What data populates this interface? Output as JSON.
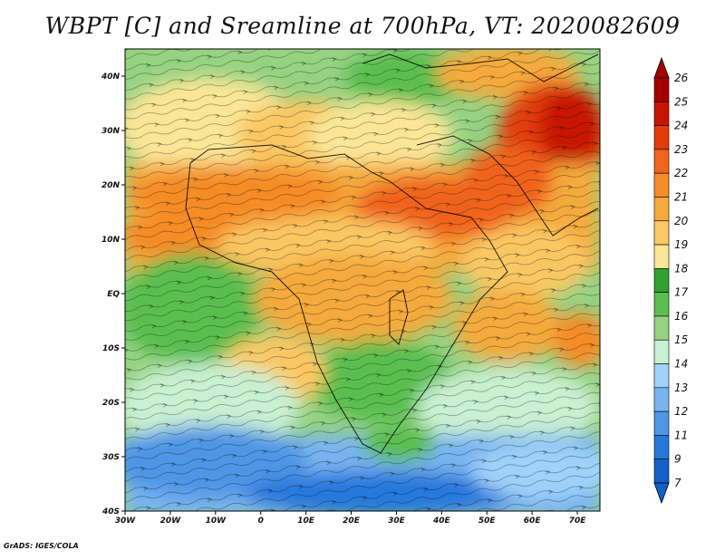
{
  "title": "WBPT [C] and Sreamline at 700hPa, VT: 2020082609",
  "credit": "GrADS: IGES/COLA",
  "axes": {
    "lat_labels": [
      "40N",
      "30N",
      "20N",
      "10N",
      "EQ",
      "10S",
      "20S",
      "30S",
      "40S"
    ],
    "lon_labels": [
      "30W",
      "20W",
      "10W",
      "0",
      "10E",
      "20E",
      "30E",
      "40E",
      "50E",
      "60E",
      "70E"
    ]
  },
  "colorbar": {
    "labels": [
      "26",
      "25",
      "24",
      "23",
      "22",
      "21",
      "20",
      "19",
      "18",
      "17",
      "16",
      "15",
      "14",
      "13",
      "12",
      "11",
      "9",
      "7"
    ],
    "colors": [
      "#a50000",
      "#c81400",
      "#e13c0a",
      "#f0641e",
      "#f58c28",
      "#f5aa3c",
      "#fac864",
      "#fae696",
      "#32a032",
      "#5abe50",
      "#96d282",
      "#c8f0d2",
      "#a0d2fa",
      "#78b4f0",
      "#5096e6",
      "#2878dc",
      "#1460c8"
    ]
  },
  "chart_data": {
    "type": "heatmap",
    "title": "WBPT [C] and Sreamline at 700hPa, VT: 2020082609",
    "variable_units": "C",
    "level": "700hPa",
    "valid_time": "2020082609",
    "x_ticks": [
      "30W",
      "20W",
      "10W",
      "0",
      "10E",
      "20E",
      "30E",
      "40E",
      "50E",
      "60E",
      "70E"
    ],
    "y_ticks": [
      "40N",
      "30N",
      "20N",
      "10N",
      "EQ",
      "10S",
      "20S",
      "30S",
      "40S"
    ],
    "xlim": [
      -30,
      75
    ],
    "ylim": [
      -40,
      45
    ],
    "color_levels": [
      7,
      9,
      11,
      12,
      13,
      14,
      15,
      16,
      17,
      18,
      19,
      20,
      21,
      22,
      23,
      24,
      25,
      26
    ]
  }
}
